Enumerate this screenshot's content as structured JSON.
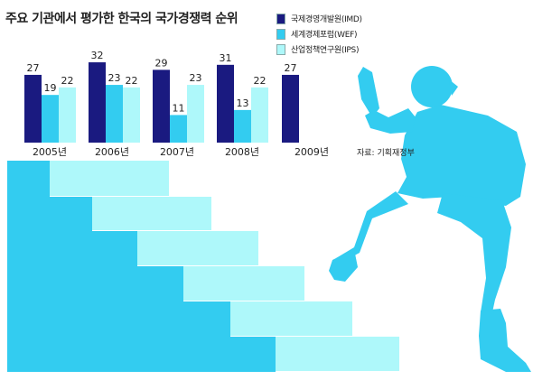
{
  "title": "주요 기관에서 평가한 한국의 국가경쟁력 순위",
  "source": "자료: 기획재정부",
  "colors": {
    "imd": "#1a1a80",
    "wef": "#33ccf0",
    "ips": "#aef8fa",
    "stairs": "#33ccf0",
    "stairs_light": "#aef8fa",
    "runner": "#33ccf0"
  },
  "chart_data": {
    "type": "bar",
    "title": "주요 기관에서 평가한 한국의 국가경쟁력 순위",
    "categories": [
      "2005년",
      "2006년",
      "2007년",
      "2008년",
      "2009년"
    ],
    "series": [
      {
        "name": "국제경영개발원(IMD)",
        "values": [
          27,
          32,
          29,
          31,
          27
        ]
      },
      {
        "name": "세계경제포럼(WEF)",
        "values": [
          19,
          23,
          11,
          13,
          null
        ]
      },
      {
        "name": "산업정책연구원(IPS)",
        "values": [
          22,
          22,
          23,
          22,
          null
        ]
      }
    ],
    "ylim": [
      0,
      35
    ],
    "grid": false,
    "legend": "top-right"
  }
}
